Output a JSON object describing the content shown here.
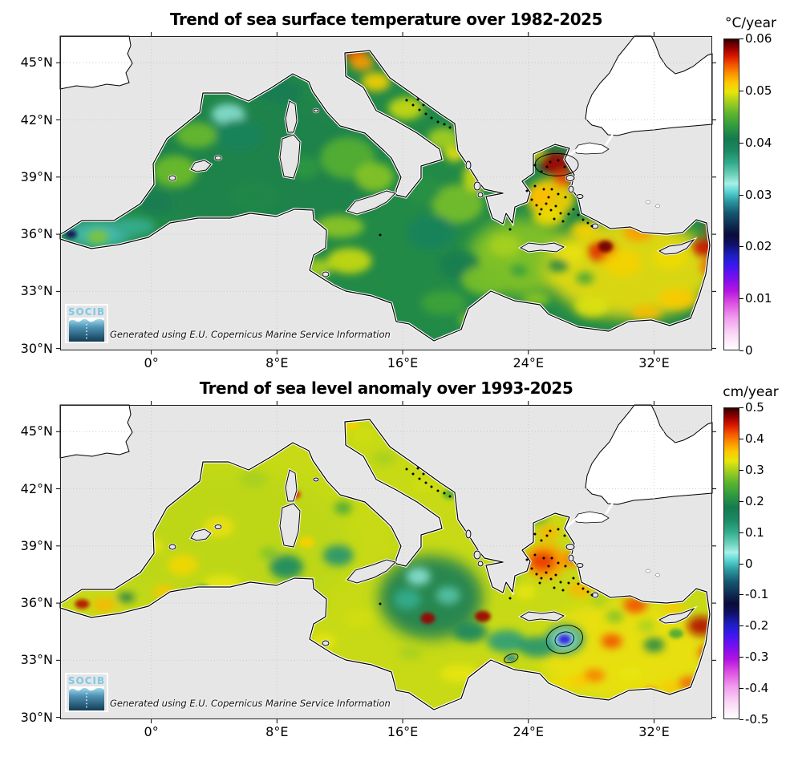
{
  "panels": [
    {
      "title": "Trend of sea surface temperature over 1982-2025",
      "units": "°C/year",
      "logo_text": "SOCIB",
      "attribution": "Generated using E.U. Copernicus Marine Service Information",
      "colorbar": {
        "tick_labels": [
          "0.06",
          "0.05",
          "0.04",
          "0.03",
          "0.02",
          "0.01",
          "0"
        ],
        "vmin": 0,
        "vmax": 0.06
      },
      "x_ticks": [
        {
          "label": "0°",
          "lon": 0
        },
        {
          "label": "8°E",
          "lon": 8
        },
        {
          "label": "16°E",
          "lon": 16
        },
        {
          "label": "24°E",
          "lon": 24
        },
        {
          "label": "32°E",
          "lon": 32
        }
      ],
      "y_ticks": [
        {
          "label": "45°N",
          "lat": 45
        },
        {
          "label": "42°N",
          "lat": 42
        },
        {
          "label": "39°N",
          "lat": 39
        },
        {
          "label": "36°N",
          "lat": 36
        },
        {
          "label": "33°N",
          "lat": 33
        },
        {
          "label": "30°N",
          "lat": 30
        }
      ],
      "base_value": 0.042,
      "field_blobs": [
        [
          7,
          39.5,
          150,
          95,
          0.0415
        ],
        [
          23.5,
          34.8,
          65,
          48,
          0.047
        ],
        [
          30.5,
          34.2,
          105,
          62,
          0.0502
        ],
        [
          25.4,
          37.9,
          30,
          24,
          0.051
        ],
        [
          19.5,
          37.6,
          32,
          24,
          0.0465
        ],
        [
          -3.3,
          36,
          40,
          16,
          0.03
        ],
        [
          -3.4,
          35.85,
          13,
          8,
          0.047
        ],
        [
          -5.1,
          36,
          7,
          5,
          0.021
        ],
        [
          -1,
          36.4,
          24,
          11,
          0.036
        ],
        [
          1.5,
          39.3,
          28,
          20,
          0.0462
        ],
        [
          2.9,
          41.2,
          26,
          16,
          0.046
        ],
        [
          4.9,
          42.3,
          21,
          13,
          0.033
        ],
        [
          5.6,
          41.2,
          30,
          20,
          0.0395
        ],
        [
          8.3,
          43.5,
          28,
          15,
          0.0405
        ],
        [
          12.5,
          40,
          34,
          26,
          0.0452
        ],
        [
          14.2,
          39,
          24,
          18,
          0.047
        ],
        [
          12,
          36.4,
          30,
          14,
          0.0472
        ],
        [
          12.6,
          34.6,
          28,
          16,
          0.049
        ],
        [
          10.6,
          34.2,
          16,
          12,
          0.048
        ],
        [
          13,
          45.45,
          14,
          8,
          0.0555
        ],
        [
          13.4,
          45,
          15,
          10,
          0.053
        ],
        [
          14.3,
          44,
          18,
          12,
          0.051
        ],
        [
          16.2,
          42.6,
          22,
          14,
          0.049
        ],
        [
          18.6,
          41,
          20,
          14,
          0.048
        ],
        [
          19.3,
          40.2,
          13,
          9,
          0.05
        ],
        [
          20.6,
          39,
          15,
          18,
          0.049
        ],
        [
          17.3,
          38.3,
          22,
          16,
          0.0425
        ],
        [
          17.8,
          36.1,
          30,
          22,
          0.0395
        ],
        [
          19.6,
          34.4,
          25,
          18,
          0.041
        ],
        [
          18.6,
          32.4,
          28,
          15,
          0.044
        ],
        [
          20.6,
          31.5,
          20,
          9,
          0.047
        ],
        [
          22.5,
          35.4,
          20,
          14,
          0.048
        ],
        [
          21.2,
          33.6,
          28,
          18,
          0.0465
        ],
        [
          25.7,
          39.7,
          19,
          14,
          0.058
        ],
        [
          26.2,
          38.9,
          12,
          10,
          0.0555
        ],
        [
          24.8,
          38,
          17,
          13,
          0.052
        ],
        [
          24.2,
          40.3,
          15,
          9,
          0.051
        ],
        [
          25.3,
          36.9,
          20,
          12,
          0.0505
        ],
        [
          27.6,
          36.2,
          17,
          11,
          0.051
        ],
        [
          28.7,
          35.1,
          19,
          13,
          0.0562
        ],
        [
          28.9,
          35.35,
          9,
          7,
          0.059
        ],
        [
          31,
          36.1,
          19,
          11,
          0.053
        ],
        [
          30,
          34.5,
          24,
          17,
          0.051
        ],
        [
          33,
          34.8,
          21,
          15,
          0.0505
        ],
        [
          35.2,
          35.3,
          15,
          11,
          0.057
        ],
        [
          35.6,
          34.3,
          13,
          11,
          0.0545
        ],
        [
          35.8,
          36.25,
          11,
          8,
          0.056
        ],
        [
          33.5,
          32.6,
          24,
          13,
          0.0515
        ],
        [
          31.5,
          31.9,
          19,
          9,
          0.052
        ],
        [
          28,
          32.2,
          21,
          13,
          0.0495
        ],
        [
          25.9,
          34.35,
          13,
          8,
          0.0415
        ],
        [
          27.6,
          33.7,
          11,
          7,
          0.044
        ],
        [
          24.5,
          32.6,
          17,
          9,
          0.047
        ],
        [
          23.4,
          34.1,
          11,
          7,
          0.0435
        ],
        [
          26.8,
          35,
          15,
          9,
          0.05
        ],
        [
          22.8,
          38.35,
          11,
          7,
          0.049
        ],
        [
          0.3,
          37.6,
          22,
          14,
          0.0405
        ],
        [
          6.5,
          38,
          30,
          20,
          0.0418
        ],
        [
          9.8,
          39.5,
          18,
          14,
          0.043
        ]
      ],
      "contours": [
        [
          25.8,
          39.65,
          27,
          14,
          0
        ]
      ]
    },
    {
      "title": "Trend of sea level anomaly over 1993-2025",
      "units": "cm/year",
      "logo_text": "SOCIB",
      "attribution": "Generated using E.U. Copernicus Marine Service Information",
      "colorbar": {
        "tick_labels": [
          "0.5",
          "0.4",
          "0.3",
          "0.2",
          "0.1",
          "0",
          "-0.1",
          "-0.2",
          "-0.3",
          "-0.4",
          "-0.5"
        ],
        "vmin": -0.5,
        "vmax": 0.5
      },
      "x_ticks": [
        {
          "label": "0°",
          "lon": 0
        },
        {
          "label": "8°E",
          "lon": 8
        },
        {
          "label": "16°E",
          "lon": 16
        },
        {
          "label": "24°E",
          "lon": 24
        },
        {
          "label": "32°E",
          "lon": 32
        }
      ],
      "y_ticks": [
        {
          "label": "45°N",
          "lat": 45
        },
        {
          "label": "42°N",
          "lat": 42
        },
        {
          "label": "39°N",
          "lat": 39
        },
        {
          "label": "36°N",
          "lat": 36
        },
        {
          "label": "33°N",
          "lat": 33
        },
        {
          "label": "30°N",
          "lat": 30
        }
      ],
      "base_value": 0.315,
      "field_blobs": [
        [
          5,
          39,
          150,
          95,
          0.31
        ],
        [
          30,
          33.5,
          105,
          62,
          0.335
        ],
        [
          17.8,
          36.3,
          65,
          52,
          0.17
        ],
        [
          25.1,
          38.2,
          26,
          22,
          0.38
        ],
        [
          -4.4,
          35.95,
          9,
          6,
          0.46
        ],
        [
          -3,
          35.9,
          15,
          8,
          0.37
        ],
        [
          -1.6,
          36.3,
          11,
          6,
          0.18
        ],
        [
          0.8,
          36.6,
          13,
          8,
          0.36
        ],
        [
          2,
          38,
          19,
          13,
          0.345
        ],
        [
          3.3,
          36.7,
          9,
          6,
          0.21
        ],
        [
          4.3,
          40,
          19,
          13,
          0.335
        ],
        [
          6.5,
          42.5,
          17,
          11,
          0.3
        ],
        [
          8.6,
          37.9,
          21,
          15,
          0.14
        ],
        [
          11.9,
          38.5,
          19,
          13,
          0.13
        ],
        [
          12.2,
          41,
          11,
          8,
          0.24
        ],
        [
          9.2,
          41.7,
          6,
          5,
          0.44
        ],
        [
          9.9,
          39.2,
          10,
          7,
          0.35
        ],
        [
          4.5,
          37,
          24,
          11,
          0.33
        ],
        [
          0,
          39,
          15,
          9,
          0.33
        ],
        [
          13.5,
          44.8,
          13,
          8,
          0.32
        ],
        [
          14.8,
          43.6,
          15,
          9,
          0.3
        ],
        [
          17.3,
          42.2,
          13,
          9,
          0.32
        ],
        [
          19,
          41.7,
          9,
          6,
          0.26
        ],
        [
          12.8,
          45.3,
          9,
          5,
          0.35
        ],
        [
          13.2,
          35.2,
          19,
          11,
          0.32
        ],
        [
          11,
          34,
          15,
          9,
          0.33
        ],
        [
          16.3,
          36.2,
          17,
          13,
          0.1
        ],
        [
          17.6,
          35.2,
          9,
          7,
          0.47
        ],
        [
          21.1,
          35.3,
          10,
          7,
          0.47
        ],
        [
          17,
          37.4,
          15,
          11,
          0.05
        ],
        [
          18.9,
          36.4,
          15,
          11,
          0.08
        ],
        [
          20.3,
          34.5,
          21,
          13,
          0.15
        ],
        [
          22.6,
          34,
          24,
          14,
          0.12
        ],
        [
          24.6,
          33.7,
          24,
          13,
          0.13
        ],
        [
          26.3,
          34.1,
          25,
          19,
          0.12
        ],
        [
          26.3,
          34.1,
          15,
          11,
          0.03
        ],
        [
          26.3,
          34.1,
          8,
          6,
          -0.22
        ],
        [
          22.9,
          33.1,
          7,
          4,
          -0.03
        ],
        [
          19.6,
          32.3,
          24,
          11,
          0.33
        ],
        [
          21.6,
          32.4,
          15,
          9,
          0.38
        ],
        [
          16.5,
          33.4,
          15,
          9,
          0.3
        ],
        [
          24.9,
          38.2,
          17,
          13,
          0.43
        ],
        [
          25.3,
          39.7,
          13,
          9,
          0.37
        ],
        [
          24.6,
          40.4,
          13,
          7,
          0.26
        ],
        [
          26.8,
          38.3,
          13,
          9,
          0.4
        ],
        [
          27.3,
          36.7,
          15,
          9,
          0.37
        ],
        [
          23.8,
          36.6,
          13,
          9,
          0.33
        ],
        [
          28.5,
          36.1,
          11,
          7,
          0.3
        ],
        [
          30.8,
          35.9,
          15,
          10,
          0.42
        ],
        [
          29.3,
          34,
          13,
          9,
          0.42
        ],
        [
          28.2,
          32.2,
          13,
          8,
          0.4
        ],
        [
          27.2,
          31.9,
          11,
          7,
          0.36
        ],
        [
          30.5,
          32.3,
          15,
          9,
          0.33
        ],
        [
          32,
          33.8,
          13,
          9,
          0.2
        ],
        [
          33.4,
          34.4,
          9,
          6,
          0.24
        ],
        [
          35,
          34.8,
          17,
          12,
          0.46
        ],
        [
          35.5,
          33.4,
          13,
          9,
          0.43
        ],
        [
          34.2,
          31.8,
          13,
          8,
          0.41
        ],
        [
          33,
          31.6,
          11,
          7,
          0.36
        ],
        [
          31.8,
          31.4,
          9,
          6,
          0.38
        ],
        [
          33.2,
          35.8,
          13,
          7,
          0.36
        ],
        [
          29.5,
          35.3,
          11,
          8,
          0.28
        ],
        [
          31.5,
          34.8,
          11,
          8,
          0.3
        ],
        [
          26,
          31.8,
          15,
          8,
          0.34
        ],
        [
          24,
          32.1,
          13,
          7,
          0.31
        ],
        [
          23,
          37.3,
          11,
          8,
          0.3
        ],
        [
          15.8,
          39.5,
          13,
          9,
          0.31
        ],
        [
          10.5,
          36,
          13,
          8,
          0.3
        ],
        [
          7.5,
          38.6,
          12,
          8,
          0.28
        ]
      ],
      "contours": [
        [
          26.3,
          34.1,
          23,
          17,
          -15
        ],
        [
          26.3,
          34.1,
          12,
          9,
          -15
        ],
        [
          22.9,
          33.1,
          9,
          5,
          -20
        ]
      ]
    }
  ],
  "colormap": {
    "stops": [
      [
        0.0,
        "#ffffff"
      ],
      [
        0.05,
        "#fbd9f5"
      ],
      [
        0.1,
        "#f2a0ee"
      ],
      [
        0.15,
        "#dd4fe3"
      ],
      [
        0.19,
        "#b414e0"
      ],
      [
        0.23,
        "#7c0ff0"
      ],
      [
        0.27,
        "#3c18f0"
      ],
      [
        0.3,
        "#1f1fc8"
      ],
      [
        0.34,
        "#10106a"
      ],
      [
        0.37,
        "#0b0b38"
      ],
      [
        0.4,
        "#0e2a52"
      ],
      [
        0.44,
        "#15566e"
      ],
      [
        0.48,
        "#2b9ba4"
      ],
      [
        0.51,
        "#59d6d2"
      ],
      [
        0.535,
        "#a8efe9"
      ],
      [
        0.56,
        "#73d6c0"
      ],
      [
        0.6,
        "#34ad8d"
      ],
      [
        0.64,
        "#1b8a64"
      ],
      [
        0.68,
        "#157a50"
      ],
      [
        0.72,
        "#2f9a3f"
      ],
      [
        0.76,
        "#5cb52e"
      ],
      [
        0.8,
        "#a7d01f"
      ],
      [
        0.83,
        "#e8e50a"
      ],
      [
        0.86,
        "#fcc802"
      ],
      [
        0.89,
        "#fc9000"
      ],
      [
        0.92,
        "#f35000"
      ],
      [
        0.945,
        "#d91800"
      ],
      [
        0.97,
        "#9c0000"
      ],
      [
        0.99,
        "#560000"
      ],
      [
        1.0,
        "#2b0000"
      ]
    ]
  },
  "chart_data": [
    {
      "type": "heatmap",
      "title": "Trend of sea surface temperature over 1982-2025",
      "variable": "sea surface temperature trend",
      "period": "1982-2025",
      "units": "°C/year",
      "vmin": 0,
      "vmax": 0.06,
      "colorbar_ticks": [
        0.06,
        0.05,
        0.04,
        0.03,
        0.02,
        0.01,
        0
      ],
      "x_tick_lons": [
        0,
        8,
        16,
        24,
        32
      ],
      "y_tick_lats": [
        45,
        42,
        39,
        36,
        33,
        30
      ],
      "lon_range_deg": [
        -5.8,
        35.7
      ],
      "lat_range_deg": [
        29.9,
        46.4
      ],
      "legend_position": "right",
      "grid": "dotted graticule",
      "no_data_regions": [
        "Atlantic Ocean",
        "Black Sea",
        "land"
      ],
      "region_values": {
        "Western Mediterranean basin": 0.042,
        "Alboran Sea": 0.031,
        "Gulf of Lion": 0.034,
        "Balearic-Catalan coast": 0.046,
        "Tyrrhenian Sea": 0.046,
        "North Adriatic": 0.055,
        "South Adriatic": 0.048,
        "Ionian Sea core": 0.04,
        "Gulf of Sidra coast": 0.046,
        "Northeast Aegean": 0.058,
        "Central Aegean": 0.052,
        "East of Crete": 0.058,
        "Levantine Basin": 0.051,
        "East of Cyprus": 0.058,
        "Egyptian coast": 0.052
      }
    },
    {
      "type": "heatmap",
      "title": "Trend of sea level anomaly over 1993-2025",
      "variable": "sea level anomaly trend",
      "period": "1993-2025",
      "units": "cm/year",
      "vmin": -0.5,
      "vmax": 0.5,
      "colorbar_ticks": [
        0.5,
        0.4,
        0.3,
        0.2,
        0.1,
        0,
        -0.1,
        -0.2,
        -0.3,
        -0.4,
        -0.5
      ],
      "x_tick_lons": [
        0,
        8,
        16,
        24,
        32
      ],
      "y_tick_lats": [
        45,
        42,
        39,
        36,
        33,
        30
      ],
      "lon_range_deg": [
        -5.8,
        35.7
      ],
      "lat_range_deg": [
        29.9,
        46.4
      ],
      "legend_position": "right",
      "grid": "dotted graticule",
      "no_data_regions": [
        "Atlantic Ocean",
        "Black Sea",
        "land"
      ],
      "region_values": {
        "Western Mediterranean basin": 0.3,
        "West Alboran Sea": 0.46,
        "Southwest of Sardinia": 0.14,
        "Southeast Tyrrhenian": 0.13,
        "Adriatic Sea": 0.31,
        "Ionian Sea gyre": 0.08,
        "Dark red spots west of Crete": 0.47,
        "Eddy southeast of Crete (core)": -0.3,
        "Aegean Sea": 0.4,
        "North Aegean": 0.26,
        "Levantine Basin": 0.4,
        "East of Cyprus": 0.46,
        "South of Cyprus": 0.2
      }
    }
  ]
}
